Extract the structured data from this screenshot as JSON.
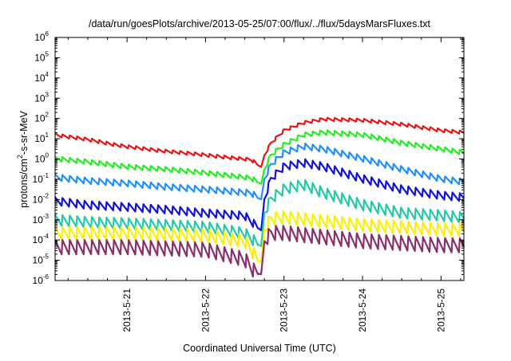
{
  "chart_data": {
    "type": "line",
    "title": "/data/run/goesPlots/archive/2013-05-25/07:00/flux/../flux/5daysMarsFluxes.txt",
    "xlabel": "Coordinated Universal Time (UTC)",
    "ylabel": "protons/cm2-s-sr-MeV",
    "ylabel_parts": {
      "pre": "protons/cm",
      "sup": "2",
      "post": "-s-sr-MeV"
    },
    "y_scale": "log",
    "ylim": [
      1e-06,
      1000000.0
    ],
    "y_ticks": [
      {
        "exp": "-6"
      },
      {
        "exp": "-5"
      },
      {
        "exp": "-4"
      },
      {
        "exp": "-3"
      },
      {
        "exp": "-2"
      },
      {
        "exp": "-1"
      },
      {
        "exp": "0"
      },
      {
        "exp": "1"
      },
      {
        "exp": "2"
      },
      {
        "exp": "3"
      },
      {
        "exp": "4"
      },
      {
        "exp": "5"
      },
      {
        "exp": "6"
      }
    ],
    "y_tick_base": "10",
    "xlim": [
      "2013-05-20 02:00",
      "2013-05-25 07:00"
    ],
    "x_ticks": [
      "2013-5-21",
      "2013-5-22",
      "2013-5-23",
      "2013-5-24",
      "2013-5-25"
    ],
    "grid": false,
    "legend": "none",
    "series": [
      {
        "color": "#ee1111",
        "points": [
          [
            "2013-05-20 02:00",
            15
          ],
          [
            "2013-05-20 12:00",
            9
          ],
          [
            "2013-05-20 20:00",
            5
          ],
          [
            "2013-05-21 00:00",
            4
          ],
          [
            "2013-05-21 10:00",
            2.5
          ],
          [
            "2013-05-21 20:00",
            1.8
          ],
          [
            "2013-05-22 06:00",
            1.2
          ],
          [
            "2013-05-22 14:00",
            0.9
          ],
          [
            "2013-05-22 16:00",
            0.5
          ],
          [
            "2013-05-22 17:00",
            0.4
          ],
          [
            "2013-05-22 18:00",
            1.5
          ],
          [
            "2013-05-22 20:00",
            6
          ],
          [
            "2013-05-23 00:00",
            25
          ],
          [
            "2013-05-23 06:00",
            60
          ],
          [
            "2013-05-23 12:00",
            90
          ],
          [
            "2013-05-24 00:00",
            80
          ],
          [
            "2013-05-24 12:00",
            50
          ],
          [
            "2013-05-25 00:00",
            25
          ],
          [
            "2013-05-25 07:00",
            20
          ]
        ],
        "amp": 0.09
      },
      {
        "color": "#22ee22",
        "points": [
          [
            "2013-05-20 02:00",
            1
          ],
          [
            "2013-05-20 12:00",
            0.7
          ],
          [
            "2013-05-21 00:00",
            0.4
          ],
          [
            "2013-05-21 12:00",
            0.3
          ],
          [
            "2013-05-22 00:00",
            0.2
          ],
          [
            "2013-05-22 14:00",
            0.11
          ],
          [
            "2013-05-22 16:00",
            0.07
          ],
          [
            "2013-05-22 17:00",
            0.06
          ],
          [
            "2013-05-22 18:00",
            0.3
          ],
          [
            "2013-05-22 20:00",
            1.5
          ],
          [
            "2013-05-23 00:00",
            5
          ],
          [
            "2013-05-23 06:00",
            15
          ],
          [
            "2013-05-23 12:00",
            20
          ],
          [
            "2013-05-24 00:00",
            15
          ],
          [
            "2013-05-24 12:00",
            6
          ],
          [
            "2013-05-25 00:00",
            3
          ],
          [
            "2013-05-25 07:00",
            2
          ]
        ],
        "amp": 0.13
      },
      {
        "color": "#1e90ff",
        "points": [
          [
            "2013-05-20 02:00",
            0.12
          ],
          [
            "2013-05-20 12:00",
            0.08
          ],
          [
            "2013-05-21 00:00",
            0.06
          ],
          [
            "2013-05-21 12:00",
            0.04
          ],
          [
            "2013-05-22 00:00",
            0.03
          ],
          [
            "2013-05-22 14:00",
            0.02
          ],
          [
            "2013-05-22 16:00",
            0.012
          ],
          [
            "2013-05-22 17:00",
            0.01
          ],
          [
            "2013-05-22 18:00",
            0.1
          ],
          [
            "2013-05-22 20:00",
            0.5
          ],
          [
            "2013-05-23 00:00",
            2
          ],
          [
            "2013-05-23 06:00",
            4
          ],
          [
            "2013-05-23 12:00",
            3
          ],
          [
            "2013-05-24 00:00",
            1
          ],
          [
            "2013-05-24 12:00",
            0.3
          ],
          [
            "2013-05-25 00:00",
            0.1
          ],
          [
            "2013-05-25 07:00",
            0.07
          ]
        ],
        "amp": 0.17
      },
      {
        "color": "#1010dd",
        "points": [
          [
            "2013-05-20 02:00",
            0.008
          ],
          [
            "2013-05-20 12:00",
            0.005
          ],
          [
            "2013-05-21 00:00",
            0.004
          ],
          [
            "2013-05-21 12:00",
            0.003
          ],
          [
            "2013-05-22 00:00",
            0.002
          ],
          [
            "2013-05-22 12:00",
            0.0015
          ],
          [
            "2013-05-22 16:00",
            0.0004
          ],
          [
            "2013-05-22 17:00",
            0.0003
          ],
          [
            "2013-05-22 18:00",
            0.01
          ],
          [
            "2013-05-22 20:00",
            0.1
          ],
          [
            "2013-05-23 00:00",
            0.4
          ],
          [
            "2013-05-23 06:00",
            0.6
          ],
          [
            "2013-05-23 12:00",
            0.4
          ],
          [
            "2013-05-24 00:00",
            0.1
          ],
          [
            "2013-05-24 12:00",
            0.03
          ],
          [
            "2013-05-25 00:00",
            0.015
          ],
          [
            "2013-05-25 07:00",
            0.012
          ]
        ],
        "amp": 0.22
      },
      {
        "color": "#20c9a8",
        "points": [
          [
            "2013-05-20 02:00",
            0.0009
          ],
          [
            "2013-05-20 12:00",
            0.0007
          ],
          [
            "2013-05-21 00:00",
            0.0006
          ],
          [
            "2013-05-21 12:00",
            0.0005
          ],
          [
            "2013-05-22 00:00",
            0.0004
          ],
          [
            "2013-05-22 12:00",
            0.0002
          ],
          [
            "2013-05-22 16:00",
            6e-05
          ],
          [
            "2013-05-22 17:00",
            5e-05
          ],
          [
            "2013-05-22 18:00",
            0.002
          ],
          [
            "2013-05-22 20:00",
            0.01
          ],
          [
            "2013-05-23 00:00",
            0.03
          ],
          [
            "2013-05-23 06:00",
            0.05
          ],
          [
            "2013-05-23 12:00",
            0.02
          ],
          [
            "2013-05-24 00:00",
            0.005
          ],
          [
            "2013-05-24 12:00",
            0.002
          ],
          [
            "2013-05-25 00:00",
            0.0015
          ],
          [
            "2013-05-25 07:00",
            0.0012
          ]
        ],
        "amp": 0.3
      },
      {
        "color": "#ffee00",
        "points": [
          [
            "2013-05-20 02:00",
            0.0002
          ],
          [
            "2013-05-21 00:00",
            0.0002
          ],
          [
            "2013-05-22 00:00",
            0.00015
          ],
          [
            "2013-05-22 12:00",
            8e-05
          ],
          [
            "2013-05-22 16:00",
            1e-05
          ],
          [
            "2013-05-22 17:00",
            8e-06
          ],
          [
            "2013-05-22 18:00",
            0.0003
          ],
          [
            "2013-05-22 20:00",
            0.001
          ],
          [
            "2013-05-23 00:00",
            0.0012
          ],
          [
            "2013-05-24 00:00",
            0.0005
          ],
          [
            "2013-05-25 00:00",
            0.0003
          ],
          [
            "2013-05-25 07:00",
            0.0003
          ]
        ],
        "amp": 0.35
      },
      {
        "color": "#8b2d6a",
        "points": [
          [
            "2013-05-20 02:00",
            4e-05
          ],
          [
            "2013-05-21 00:00",
            4e-05
          ],
          [
            "2013-05-22 00:00",
            3e-05
          ],
          [
            "2013-05-22 12:00",
            1e-05
          ],
          [
            "2013-05-22 15:00",
            2.5e-06
          ],
          [
            "2013-05-22 17:00",
            2e-06
          ],
          [
            "2013-05-22 18:00",
            8e-05
          ],
          [
            "2013-05-22 20:00",
            0.0002
          ],
          [
            "2013-05-23 00:00",
            0.0002
          ],
          [
            "2013-05-24 00:00",
            8e-05
          ],
          [
            "2013-05-25 00:00",
            5e-05
          ],
          [
            "2013-05-25 07:00",
            5e-05
          ]
        ],
        "amp": 0.4
      }
    ]
  }
}
